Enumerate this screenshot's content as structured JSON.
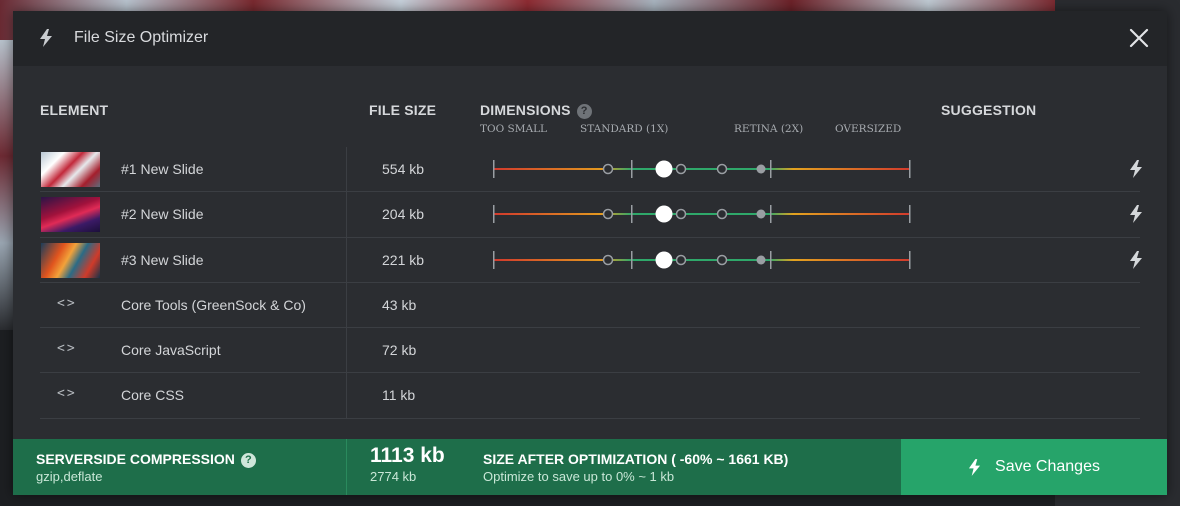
{
  "window": {
    "title": "File Size Optimizer"
  },
  "columns": {
    "element": "ELEMENT",
    "file_size": "FILE SIZE",
    "dimensions": "DIMENSIONS",
    "suggestion": "SUGGESTION"
  },
  "scale_labels": [
    "TOO SMALL",
    "STANDARD (1X)",
    "RETINA (2X)",
    "OVERSIZED"
  ],
  "rows": [
    {
      "name": "#1 New Slide",
      "size": "554 kb",
      "type": "image"
    },
    {
      "name": "#2 New Slide",
      "size": "204 kb",
      "type": "image"
    },
    {
      "name": "#3 New Slide",
      "size": "221 kb",
      "type": "image"
    },
    {
      "name": "Core Tools (GreenSock & Co)",
      "size": "43 kb",
      "type": "code"
    },
    {
      "name": "Core JavaScript",
      "size": "72 kb",
      "type": "code"
    },
    {
      "name": "Core CSS",
      "size": "11 kb",
      "type": "code"
    }
  ],
  "icons": {
    "header": "bolt-icon",
    "close": "close-icon",
    "help": "help-icon",
    "code": "code-icon",
    "suggestion": "bolt-icon"
  },
  "footer": {
    "compression_title": "SERVERSIDE COMPRESSION",
    "compression_value": "gzip,deflate",
    "total_size": "1113 kb",
    "original_size": "2774 kb",
    "after_title": "SIZE AFTER OPTIMIZATION ( -60% ~ 1661 KB)",
    "after_sub": "Optimize to save up to 0% ~ 1 kb",
    "save_label": "Save Changes"
  },
  "colors": {
    "footer_bg": "#1e6e4a",
    "save_bg": "#26a46a",
    "track_red": "#d23a2c",
    "track_orange": "#e39a1f",
    "track_green": "#2fa86a"
  }
}
